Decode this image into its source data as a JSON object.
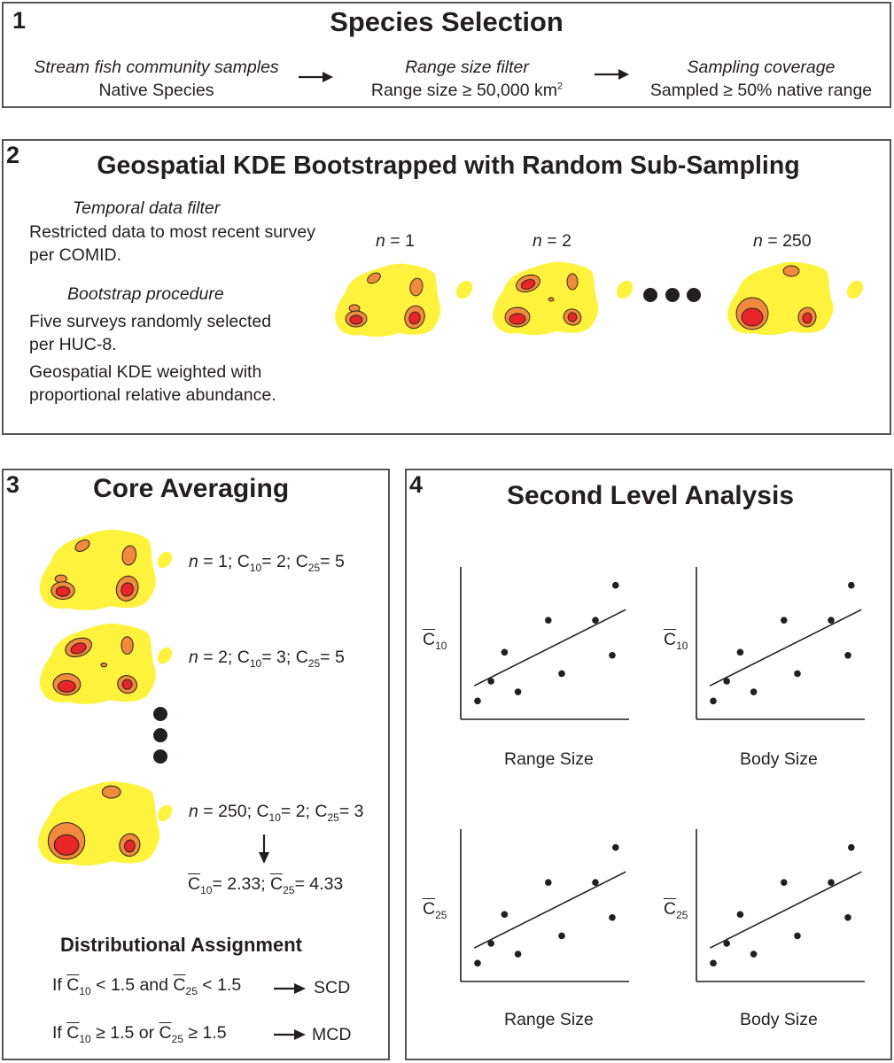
{
  "panel1": {
    "number": "1",
    "title": "Species Selection",
    "steps": [
      {
        "heading": "Stream fish community samples",
        "text": "Native Species"
      },
      {
        "heading": "Range size filter",
        "text": "Range size ≥ 50,000 km",
        "sup": "2"
      },
      {
        "heading": "Sampling coverage",
        "text": "Sampled ≥ 50% native range"
      }
    ]
  },
  "panel2": {
    "number": "2",
    "title": "Geospatial KDE Bootstrapped with Random Sub-Sampling",
    "temporal_heading": "Temporal data filter",
    "temporal_text_1": "Restricted data to most recent survey",
    "temporal_text_2": "per COMID.",
    "bootstrap_heading": "Bootstrap procedure",
    "bootstrap_text_1": "Five surveys randomly selected",
    "bootstrap_text_2": "per HUC-8.",
    "bootstrap_text_3": "Geospatial KDE weighted with",
    "bootstrap_text_4": "proportional relative abundance.",
    "iterations": [
      {
        "n": "n",
        "eq": " = 1"
      },
      {
        "n": "n",
        "eq": " = 2"
      },
      {
        "n": "n",
        "eq": " = 250"
      }
    ]
  },
  "panel3": {
    "number": "3",
    "title": "Core Averaging",
    "rows": [
      {
        "n": "n",
        "eq": " = 1; C",
        "s1": "10",
        "m": "= 2; C",
        "s2": "25",
        "e": "= 5"
      },
      {
        "n": "n",
        "eq": " = 2; C",
        "s1": "10",
        "m": "= 3; C",
        "s2": "25",
        "e": "= 5"
      },
      {
        "n": "n",
        "eq": " = 250; C",
        "s1": "10",
        "m": "= 2; C",
        "s2": "25",
        "e": "= 3"
      }
    ],
    "mean": {
      "c": "C",
      "s1": "10",
      "v1": "= 2.33; ",
      "c2": "C",
      "s2": "25",
      "v2": "= 4.33"
    },
    "assign_title": "Distributional Assignment",
    "rule1": {
      "pre": "If ",
      "c": "C",
      "s1": "10",
      "mid": " < 1.5 and ",
      "c2": "C",
      "s2": "25",
      "end": " < 1.5",
      "result": "SCD"
    },
    "rule2": {
      "pre": "If ",
      "c": "C",
      "s1": "10",
      "mid": " ≥ 1.5 or ",
      "c2": "C",
      "s2": "25",
      "end": " ≥ 1.5",
      "result": "MCD"
    }
  },
  "panel4": {
    "number": "4",
    "title": "Second Level Analysis",
    "plots": [
      {
        "ylabel": "C",
        "ysub": "10",
        "xlabel": "Range Size"
      },
      {
        "ylabel": "C",
        "ysub": "10",
        "xlabel": "Body Size"
      },
      {
        "ylabel": "C",
        "ysub": "25",
        "xlabel": "Range Size"
      },
      {
        "ylabel": "C",
        "ysub": "25",
        "xlabel": "Body Size"
      }
    ]
  },
  "colors": {
    "outer": "#fff23c",
    "mid": "#f08a3c",
    "inner": "#e8262a",
    "ink": "#231f20"
  }
}
